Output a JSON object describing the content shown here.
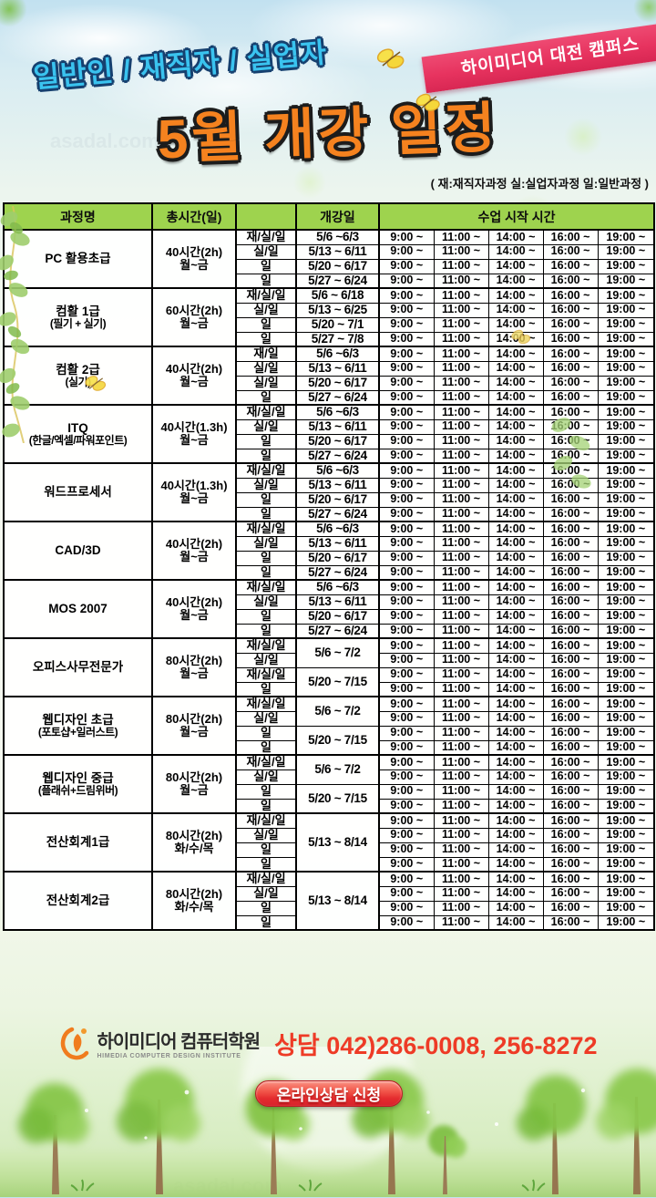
{
  "header": {
    "audience_line": "일반인 / 재직자 / 실업자",
    "campus_badge": "하이미디어 대전 캠퍼스",
    "title": "5월 개강 일정",
    "legend": "( 재:재직자과정  실:실업자과정  일:일반과정 )"
  },
  "background": {
    "watermark": "asadal.com"
  },
  "colors": {
    "header_green": "#9ed34e",
    "ribbon_pink": "#e7335f",
    "title_orange": "#f5821f",
    "audience_cyan": "#3ac3ef",
    "phone_red": "#ee3b26",
    "button_red": "#e42b2e"
  },
  "table": {
    "headers": {
      "course": "과정명",
      "hours": "총시간(일)",
      "type": "",
      "start_date": "개강일",
      "times": "수업 시작 시간"
    },
    "time_slots": [
      "9:00 ~",
      "11:00 ~",
      "14:00 ~",
      "16:00 ~",
      "19:00 ~"
    ],
    "courses": [
      {
        "name": "PC 활용초급",
        "hours": "40시간(2h)",
        "days": "월~금",
        "rows": [
          {
            "type": "재/실/일",
            "date": "5/6 ~6/3",
            "span": 1
          },
          {
            "type": "실/일",
            "date": "5/13 ~ 6/11",
            "span": 1
          },
          {
            "type": "일",
            "date": "5/20 ~ 6/17",
            "span": 1
          },
          {
            "type": "일",
            "date": "5/27 ~ 6/24",
            "span": 1
          }
        ]
      },
      {
        "name": "컴활 1급",
        "sub": "(필기 + 실기)",
        "hours": "60시간(2h)",
        "days": "월~금",
        "rows": [
          {
            "type": "재/실/일",
            "date": "5/6 ~ 6/18",
            "span": 1
          },
          {
            "type": "실/일",
            "date": "5/13 ~ 6/25",
            "span": 1
          },
          {
            "type": "일",
            "date": "5/20 ~ 7/1",
            "span": 1
          },
          {
            "type": "일",
            "date": "5/27 ~ 7/8",
            "span": 1
          }
        ]
      },
      {
        "name": "컴활 2급",
        "sub": "(실기)",
        "hours": "40시간(2h)",
        "days": "월~금",
        "rows": [
          {
            "type": "재/일",
            "date": "5/6 ~6/3",
            "span": 1
          },
          {
            "type": "실/일",
            "date": "5/13 ~ 6/11",
            "span": 1
          },
          {
            "type": "실/일",
            "date": "5/20 ~ 6/17",
            "span": 1
          },
          {
            "type": "일",
            "date": "5/27 ~ 6/24",
            "span": 1
          }
        ]
      },
      {
        "name": "ITQ",
        "sub": "(한글/엑셀/파워포인트)",
        "hours": "40시간(1.3h)",
        "days": "월~금",
        "rows": [
          {
            "type": "재/실/일",
            "date": "5/6 ~6/3",
            "span": 1
          },
          {
            "type": "실/일",
            "date": "5/13 ~ 6/11",
            "span": 1
          },
          {
            "type": "일",
            "date": "5/20 ~ 6/17",
            "span": 1
          },
          {
            "type": "일",
            "date": "5/27 ~ 6/24",
            "span": 1
          }
        ]
      },
      {
        "name": "워드프로세서",
        "hours": "40시간(1.3h)",
        "days": "월~금",
        "rows": [
          {
            "type": "재/실/일",
            "date": "5/6 ~6/3",
            "span": 1
          },
          {
            "type": "실/일",
            "date": "5/13 ~ 6/11",
            "span": 1
          },
          {
            "type": "일",
            "date": "5/20 ~ 6/17",
            "span": 1
          },
          {
            "type": "일",
            "date": "5/27 ~ 6/24",
            "span": 1
          }
        ]
      },
      {
        "name": "CAD/3D",
        "hours": "40시간(2h)",
        "days": "월~금",
        "rows": [
          {
            "type": "재/실/일",
            "date": "5/6 ~6/3",
            "span": 1
          },
          {
            "type": "실/일",
            "date": "5/13 ~ 6/11",
            "span": 1
          },
          {
            "type": "일",
            "date": "5/20 ~ 6/17",
            "span": 1
          },
          {
            "type": "일",
            "date": "5/27 ~ 6/24",
            "span": 1
          }
        ]
      },
      {
        "name": "MOS 2007",
        "hours": "40시간(2h)",
        "days": "월~금",
        "rows": [
          {
            "type": "재/실/일",
            "date": "5/6 ~6/3",
            "span": 1
          },
          {
            "type": "실/일",
            "date": "5/13 ~ 6/11",
            "span": 1
          },
          {
            "type": "일",
            "date": "5/20 ~ 6/17",
            "span": 1
          },
          {
            "type": "일",
            "date": "5/27 ~ 6/24",
            "span": 1
          }
        ]
      },
      {
        "name": "오피스사무전문가",
        "hours": "80시간(2h)",
        "days": "월~금",
        "rows": [
          {
            "type": "재/실/일",
            "date": "5/6 ~ 7/2",
            "span": 2
          },
          {
            "type": "실/일"
          },
          {
            "type": "재/실/일",
            "date": "5/20 ~ 7/15",
            "span": 2
          },
          {
            "type": "일"
          }
        ]
      },
      {
        "name": "웹디자인 초급",
        "sub": "(포토샵+일러스트)",
        "hours": "80시간(2h)",
        "days": "월~금",
        "rows": [
          {
            "type": "재/실/일",
            "date": "5/6 ~ 7/2",
            "span": 2
          },
          {
            "type": "실/일"
          },
          {
            "type": "일",
            "date": "5/20 ~ 7/15",
            "span": 2
          },
          {
            "type": "일"
          }
        ]
      },
      {
        "name": "웹디자인 중급",
        "sub": "(플래쉬+드림위버)",
        "hours": "80시간(2h)",
        "days": "월~금",
        "rows": [
          {
            "type": "재/실/일",
            "date": "5/6 ~ 7/2",
            "span": 2
          },
          {
            "type": "실/일"
          },
          {
            "type": "일",
            "date": "5/20 ~ 7/15",
            "span": 2
          },
          {
            "type": "일"
          }
        ]
      },
      {
        "name": "전산회계1급",
        "hours": "80시간(2h)",
        "days": "화/수/목",
        "rows": [
          {
            "type": "재/실/일",
            "date": "5/13 ~ 8/14",
            "span": 4
          },
          {
            "type": "실/일"
          },
          {
            "type": "일"
          },
          {
            "type": "일"
          }
        ]
      },
      {
        "name": "전산회계2급",
        "hours": "80시간(2h)",
        "days": "화/수/목",
        "rows": [
          {
            "type": "재/실/일",
            "date": "5/13 ~ 8/14",
            "span": 4
          },
          {
            "type": "실/일"
          },
          {
            "type": "일"
          },
          {
            "type": "일"
          }
        ]
      }
    ]
  },
  "footer": {
    "logo_title": "하이미디어 컴퓨터학원",
    "logo_caption": "HIMEDIA COMPUTER DESIGN INSTITUTE",
    "phone_label": "상담 042)286-0008, 256-8272",
    "consult_button": "온라인상담 신청"
  }
}
